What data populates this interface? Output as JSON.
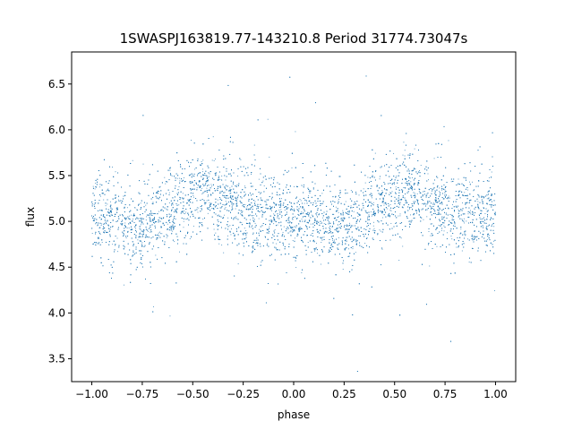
{
  "chart_data": {
    "type": "scatter",
    "title": "1SWASPJ163819.77-143210.8 Period 31774.73047s",
    "xlabel": "phase",
    "ylabel": "flux",
    "xlim": [
      -1.1,
      1.1
    ],
    "ylim": [
      3.25,
      6.85
    ],
    "x_ticks": [
      -1.0,
      -0.75,
      -0.5,
      -0.25,
      0.0,
      0.25,
      0.5,
      0.75,
      1.0
    ],
    "x_tick_labels": [
      "−1.00",
      "−0.75",
      "−0.50",
      "−0.25",
      "0.00",
      "0.25",
      "0.50",
      "0.75",
      "1.00"
    ],
    "y_ticks": [
      3.5,
      4.0,
      4.5,
      5.0,
      5.5,
      6.0,
      6.5
    ],
    "y_tick_labels": [
      "3.5",
      "4.0",
      "4.5",
      "5.0",
      "5.5",
      "6.0",
      "6.5"
    ],
    "grid": false,
    "legend": "none",
    "marker_color": "#1f77b4",
    "series": [
      {
        "phase": [
          -1.0,
          -0.9,
          -0.8,
          -0.75,
          -0.7,
          -0.6,
          -0.5,
          -0.45,
          -0.4,
          -0.3,
          -0.2,
          -0.1,
          0.0,
          0.1,
          0.2,
          0.25,
          0.3,
          0.4,
          0.5,
          0.55,
          0.6,
          0.7,
          0.8,
          0.9,
          1.0
        ],
        "flux": [
          5.05,
          5.0,
          4.95,
          4.93,
          5.0,
          5.15,
          5.3,
          5.32,
          5.3,
          5.15,
          5.1,
          5.05,
          5.05,
          5.0,
          4.95,
          4.93,
          5.0,
          5.15,
          5.3,
          5.32,
          5.3,
          5.15,
          5.1,
          5.05,
          5.05
        ]
      }
    ]
  }
}
